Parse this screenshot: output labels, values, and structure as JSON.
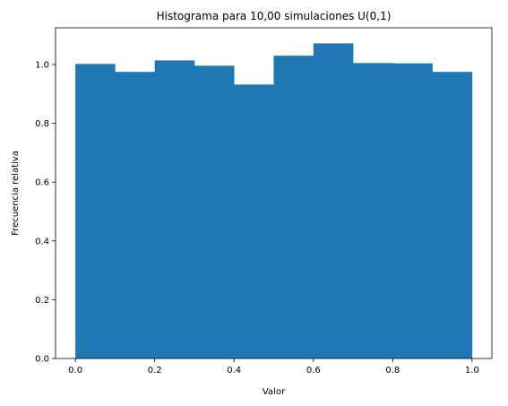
{
  "chart_data": {
    "type": "bar",
    "subtype": "histogram",
    "title": "Histograma para 10,00 simulaciones U(0,1)",
    "xlabel": "Valor",
    "ylabel": "Frecuencia relativa",
    "bin_edges": [
      0.0,
      0.1,
      0.2,
      0.3,
      0.4,
      0.5,
      0.6,
      0.7,
      0.8,
      0.9,
      1.0
    ],
    "values": [
      1.002,
      0.975,
      1.014,
      0.996,
      0.932,
      1.03,
      1.072,
      1.005,
      1.004,
      0.975
    ],
    "xlim": [
      -0.05,
      1.05
    ],
    "ylim": [
      0,
      1.125
    ],
    "xticks": [
      0.0,
      0.2,
      0.4,
      0.6,
      0.8,
      1.0
    ],
    "xtick_labels": [
      "0.0",
      "0.2",
      "0.4",
      "0.6",
      "0.8",
      "1.0"
    ],
    "yticks": [
      0.0,
      0.2,
      0.4,
      0.6,
      0.8,
      1.0
    ],
    "ytick_labels": [
      "0.0",
      "0.2",
      "0.4",
      "0.6",
      "0.8",
      "1.0"
    ],
    "grid": false,
    "bar_color": "#1f77b4"
  }
}
